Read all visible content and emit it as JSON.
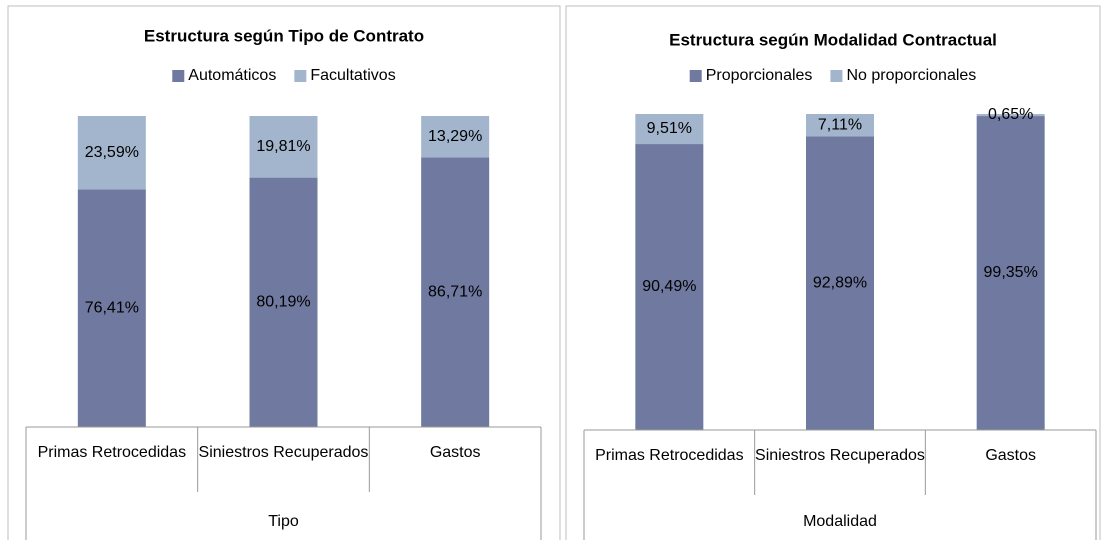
{
  "chart_data": [
    {
      "type": "stacked-bar",
      "title": "Estructura según Tipo de Contrato",
      "xlabel": "Tipo",
      "categories": [
        "Primas Retrocedidas",
        "Siniestros Recuperados",
        "Gastos"
      ],
      "ylim": [
        0,
        100
      ],
      "series": [
        {
          "name": "Automáticos",
          "color": "#7079a0",
          "values": [
            76.41,
            80.19,
            86.71
          ],
          "value_labels": [
            "76,41%",
            "80,19%",
            "86,71%"
          ]
        },
        {
          "name": "Facultativos",
          "color": "#a3b5cc",
          "values": [
            23.59,
            19.81,
            13.29
          ],
          "value_labels": [
            "23,59%",
            "19,81%",
            "13,29%"
          ]
        }
      ]
    },
    {
      "type": "stacked-bar",
      "title": "Estructura según Modalidad Contractual",
      "xlabel": "Modalidad",
      "categories": [
        "Primas Retrocedidas",
        "Siniestros Recuperados",
        "Gastos"
      ],
      "ylim": [
        0,
        100
      ],
      "series": [
        {
          "name": "Proporcionales",
          "color": "#7079a0",
          "values": [
            90.49,
            92.89,
            99.35
          ],
          "value_labels": [
            "90,49%",
            "92,89%",
            "99,35%"
          ]
        },
        {
          "name": "No proporcionales",
          "color": "#a3b5cc",
          "values": [
            9.51,
            7.11,
            0.65
          ],
          "value_labels": [
            "9,51%",
            "7,11%",
            "0,65%"
          ]
        }
      ]
    }
  ]
}
